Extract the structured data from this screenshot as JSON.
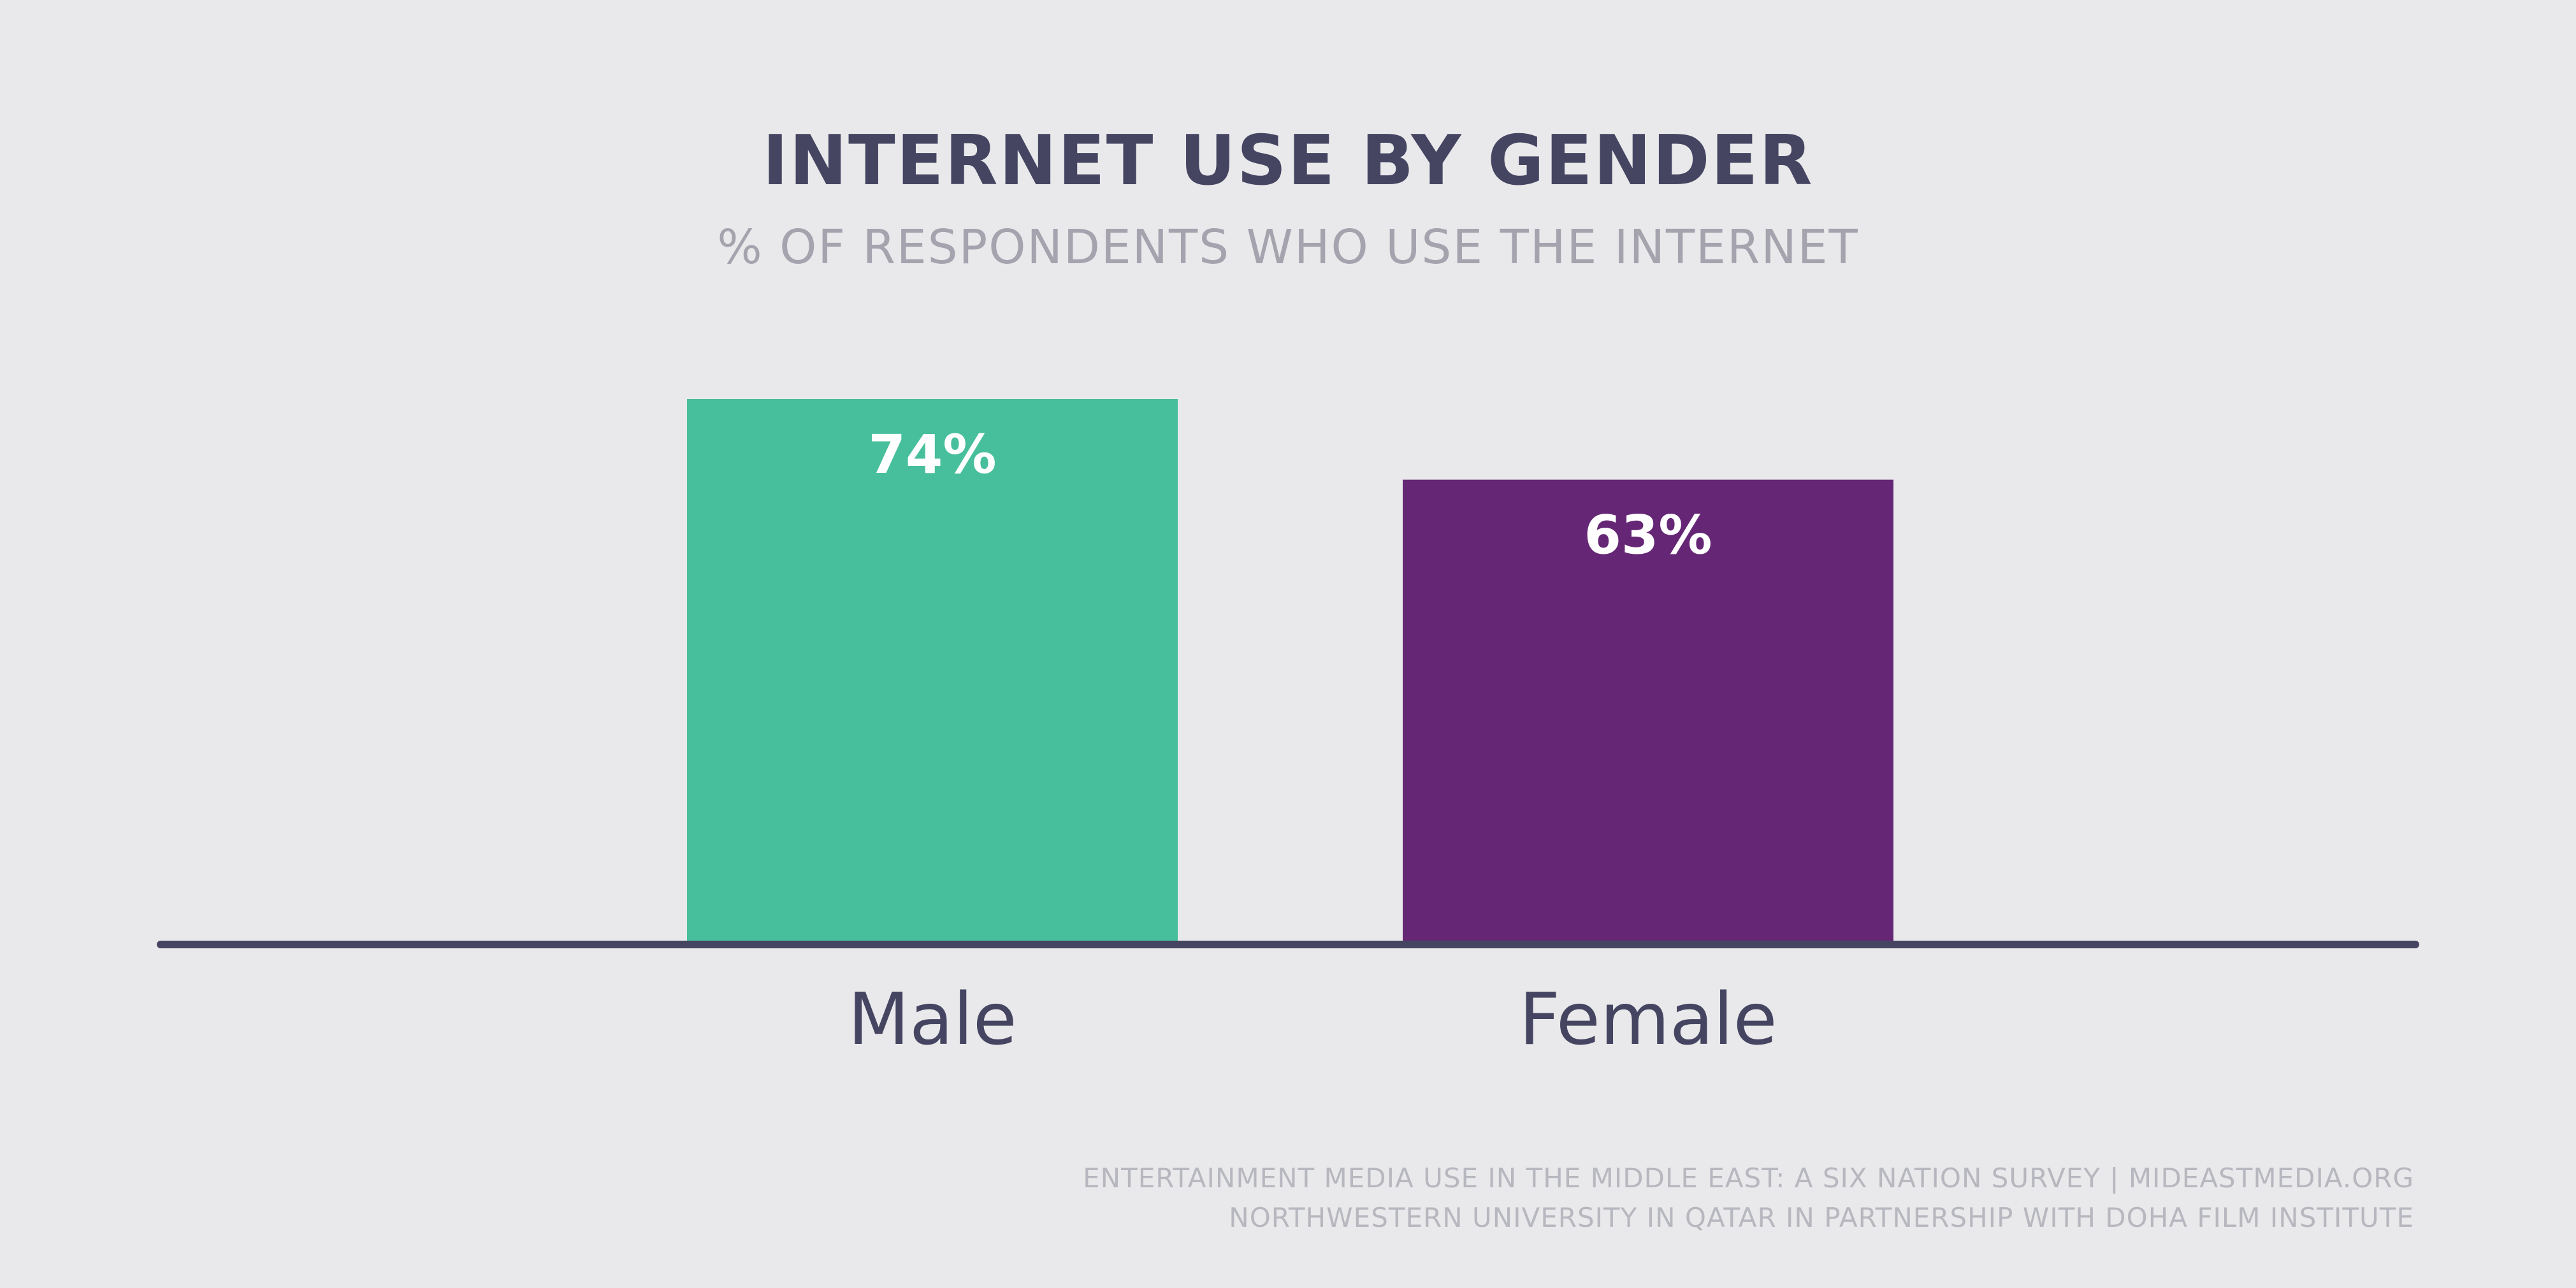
{
  "colors": {
    "background": "#e9e9eb",
    "male_bar": "#48bf9c",
    "female_bar": "#652775",
    "axis": "#454562",
    "title": "#454562",
    "subtitle": "#a4a3ae",
    "label_text": "#ffffff",
    "footer": "#b7b7bf"
  },
  "chart_data": {
    "type": "bar",
    "title": "INTERNET USE BY GENDER",
    "subtitle": "% OF RESPONDENTS WHO USE THE INTERNET",
    "categories": [
      "Male",
      "Female"
    ],
    "values": [
      74,
      63
    ],
    "data_labels": [
      "74%",
      "63%"
    ],
    "unit": "%",
    "ylim": [
      0,
      74
    ],
    "grid": false,
    "legend": "none"
  },
  "footer": {
    "line1": "ENTERTAINMENT MEDIA USE IN THE MIDDLE EAST: A SIX NATION SURVEY | MIDEASTMEDIA.ORG",
    "line2": "NORTHWESTERN UNIVERSITY IN QATAR IN PARTNERSHIP WITH DOHA FILM INSTITUTE"
  }
}
